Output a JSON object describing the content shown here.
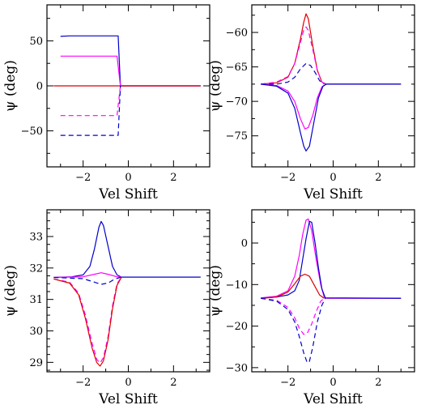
{
  "chart_data": [
    {
      "type": "line",
      "xlabel": "Vel Shift",
      "ylabel": "ψ (deg)",
      "xlim": [
        -3.6,
        3.6
      ],
      "ylim": [
        -90,
        90
      ],
      "xticks_major": [
        -2,
        0,
        2
      ],
      "xticks_minor": [
        -3,
        -1,
        1,
        3
      ],
      "yticks_major": [
        -50,
        0,
        50
      ],
      "yticks_minor": [
        -75,
        -25,
        25,
        75
      ],
      "series": [
        {
          "color": "#0000cc",
          "dash": false,
          "points": [
            [
              -3,
              55
            ],
            [
              -2.6,
              55.5
            ],
            [
              -1.5,
              55.5
            ],
            [
              -0.45,
              55.5
            ],
            [
              -0.35,
              0
            ],
            [
              3.2,
              0
            ]
          ]
        },
        {
          "color": "#ff00ff",
          "dash": false,
          "points": [
            [
              -3,
              33
            ],
            [
              -2,
              33
            ],
            [
              -0.5,
              33
            ],
            [
              -0.35,
              0
            ],
            [
              3.2,
              0
            ]
          ]
        },
        {
          "color": "#dd0000",
          "dash": false,
          "points": [
            [
              -3.3,
              0
            ],
            [
              3.2,
              0
            ]
          ]
        },
        {
          "color": "#ff00ff",
          "dash": true,
          "points": [
            [
              -3,
              -33
            ],
            [
              -0.5,
              -33
            ],
            [
              -0.35,
              0
            ]
          ]
        },
        {
          "color": "#0000cc",
          "dash": true,
          "points": [
            [
              -3,
              -55
            ],
            [
              -0.45,
              -55
            ],
            [
              -0.35,
              0
            ]
          ]
        }
      ]
    },
    {
      "type": "line",
      "xlabel": "Vel Shift",
      "ylabel": "ψ (deg)",
      "xlim": [
        -3.6,
        3.6
      ],
      "ylim": [
        -79.5,
        -56
      ],
      "xticks_major": [
        -2,
        0,
        2
      ],
      "xticks_minor": [
        -3,
        -1,
        1,
        3
      ],
      "yticks_major": [
        -75,
        -70,
        -65,
        -60
      ],
      "yticks_minor": [
        -77.5,
        -72.5,
        -67.5,
        -62.5,
        -57.5
      ],
      "series": [
        {
          "color": "#dd0000",
          "dash": false,
          "points": [
            [
              -3.2,
              -67.5
            ],
            [
              -2.5,
              -67.3
            ],
            [
              -2,
              -66.5
            ],
            [
              -1.7,
              -64.5
            ],
            [
              -1.45,
              -61
            ],
            [
              -1.3,
              -58.5
            ],
            [
              -1.2,
              -57.3
            ],
            [
              -1.1,
              -58
            ],
            [
              -0.9,
              -62
            ],
            [
              -0.7,
              -65.5
            ],
            [
              -0.5,
              -67.2
            ],
            [
              -0.3,
              -67.5
            ],
            [
              3,
              -67.5
            ]
          ]
        },
        {
          "color": "#ff00ff",
          "dash": true,
          "points": [
            [
              -3.2,
              -67.5
            ],
            [
              -2.5,
              -67.2
            ],
            [
              -2,
              -66.4
            ],
            [
              -1.7,
              -64.5
            ],
            [
              -1.45,
              -61.5
            ],
            [
              -1.3,
              -59.6
            ],
            [
              -1.2,
              -59.2
            ],
            [
              -1.1,
              -59.7
            ],
            [
              -0.9,
              -62.5
            ],
            [
              -0.7,
              -65.5
            ],
            [
              -0.5,
              -67.2
            ],
            [
              -0.3,
              -67.5
            ]
          ]
        },
        {
          "color": "#0000cc",
          "dash": true,
          "points": [
            [
              -3.2,
              -67.5
            ],
            [
              -2.5,
              -67.5
            ],
            [
              -2,
              -67.2
            ],
            [
              -1.7,
              -66.5
            ],
            [
              -1.45,
              -65.3
            ],
            [
              -1.2,
              -64.5
            ],
            [
              -1,
              -64.8
            ],
            [
              -0.8,
              -65.8
            ],
            [
              -0.6,
              -67
            ],
            [
              -0.4,
              -67.5
            ]
          ]
        },
        {
          "color": "#ff00ff",
          "dash": false,
          "points": [
            [
              -3.2,
              -67.5
            ],
            [
              -2.5,
              -67.7
            ],
            [
              -2,
              -68.5
            ],
            [
              -1.7,
              -70
            ],
            [
              -1.45,
              -72.5
            ],
            [
              -1.25,
              -74
            ],
            [
              -1.1,
              -73.8
            ],
            [
              -0.9,
              -72
            ],
            [
              -0.7,
              -69.5
            ],
            [
              -0.5,
              -67.9
            ],
            [
              -0.3,
              -67.5
            ]
          ]
        },
        {
          "color": "#0000cc",
          "dash": false,
          "points": [
            [
              -3.2,
              -67.5
            ],
            [
              -2.5,
              -67.8
            ],
            [
              -2,
              -68.8
            ],
            [
              -1.7,
              -71
            ],
            [
              -1.45,
              -74.5
            ],
            [
              -1.3,
              -76.5
            ],
            [
              -1.2,
              -77.2
            ],
            [
              -1.05,
              -76.5
            ],
            [
              -0.85,
              -73
            ],
            [
              -0.65,
              -69.5
            ],
            [
              -0.45,
              -67.8
            ],
            [
              -0.3,
              -67.5
            ],
            [
              3,
              -67.5
            ]
          ]
        }
      ]
    },
    {
      "type": "line",
      "xlabel": "Vel Shift",
      "ylabel": "ψ (deg)",
      "xlim": [
        -3.6,
        3.6
      ],
      "ylim": [
        28.7,
        33.85
      ],
      "xticks_major": [
        -2,
        0,
        2
      ],
      "xticks_minor": [
        -3,
        -1,
        1,
        3
      ],
      "yticks_major": [
        29,
        30,
        31,
        32,
        33
      ],
      "yticks_minor": [
        28.75,
        29.25,
        29.5,
        29.75,
        30.25,
        30.5,
        30.75,
        31.25,
        31.5,
        31.75,
        32.25,
        32.5,
        32.75,
        33.25,
        33.5,
        33.75
      ],
      "series": [
        {
          "color": "#0000cc",
          "dash": false,
          "points": [
            [
              -3.3,
              31.7
            ],
            [
              -2.5,
              31.72
            ],
            [
              -2,
              31.78
            ],
            [
              -1.7,
              32.05
            ],
            [
              -1.5,
              32.6
            ],
            [
              -1.3,
              33.3
            ],
            [
              -1.2,
              33.48
            ],
            [
              -1.1,
              33.35
            ],
            [
              -0.9,
              32.7
            ],
            [
              -0.7,
              32.05
            ],
            [
              -0.5,
              31.78
            ],
            [
              -0.3,
              31.71
            ],
            [
              3.2,
              31.71
            ]
          ]
        },
        {
          "color": "#ff00ff",
          "dash": false,
          "points": [
            [
              -3.3,
              31.7
            ],
            [
              -2,
              31.72
            ],
            [
              -1.5,
              31.8
            ],
            [
              -1.2,
              31.85
            ],
            [
              -0.9,
              31.8
            ],
            [
              -0.5,
              31.72
            ],
            [
              -0.3,
              31.71
            ]
          ]
        },
        {
          "color": "#0000cc",
          "dash": true,
          "points": [
            [
              -3.3,
              31.7
            ],
            [
              -2,
              31.66
            ],
            [
              -1.5,
              31.55
            ],
            [
              -1.2,
              31.48
            ],
            [
              -0.9,
              31.52
            ],
            [
              -0.6,
              31.65
            ],
            [
              -0.3,
              31.71
            ]
          ]
        },
        {
          "color": "#ff00ff",
          "dash": true,
          "points": [
            [
              -3.3,
              31.65
            ],
            [
              -2.6,
              31.55
            ],
            [
              -2.2,
              31.2
            ],
            [
              -1.9,
              30.5
            ],
            [
              -1.6,
              29.6
            ],
            [
              -1.4,
              29.1
            ],
            [
              -1.25,
              28.98
            ],
            [
              -1.1,
              29.15
            ],
            [
              -0.9,
              29.8
            ],
            [
              -0.7,
              30.8
            ],
            [
              -0.5,
              31.5
            ],
            [
              -0.3,
              31.71
            ]
          ]
        },
        {
          "color": "#dd0000",
          "dash": false,
          "points": [
            [
              -3.3,
              31.65
            ],
            [
              -2.6,
              31.52
            ],
            [
              -2.2,
              31.15
            ],
            [
              -1.9,
              30.4
            ],
            [
              -1.6,
              29.45
            ],
            [
              -1.4,
              29
            ],
            [
              -1.25,
              28.88
            ],
            [
              -1.1,
              29.05
            ],
            [
              -0.9,
              29.7
            ],
            [
              -0.7,
              30.7
            ],
            [
              -0.5,
              31.45
            ],
            [
              -0.3,
              31.71
            ]
          ]
        }
      ]
    },
    {
      "type": "line",
      "xlabel": "Vel Shift",
      "ylabel": "ψ (deg)",
      "xlim": [
        -3.6,
        3.6
      ],
      "ylim": [
        -31,
        8
      ],
      "xticks_major": [
        -2,
        0,
        2
      ],
      "xticks_minor": [
        -3,
        -1,
        1,
        3
      ],
      "yticks_major": [
        -30,
        -20,
        -10,
        0
      ],
      "yticks_minor": [
        -25,
        -15,
        -5,
        5
      ],
      "series": [
        {
          "color": "#ff00ff",
          "dash": false,
          "points": [
            [
              -3.2,
              -13.2
            ],
            [
              -2.5,
              -12.8
            ],
            [
              -2,
              -11.5
            ],
            [
              -1.7,
              -8
            ],
            [
              -1.5,
              -3
            ],
            [
              -1.35,
              2
            ],
            [
              -1.2,
              5.5
            ],
            [
              -1.1,
              5.8
            ],
            [
              -0.95,
              3
            ],
            [
              -0.75,
              -4
            ],
            [
              -0.55,
              -10
            ],
            [
              -0.4,
              -13
            ],
            [
              -0.3,
              -13.3
            ],
            [
              3,
              -13.3
            ]
          ]
        },
        {
          "color": "#0000cc",
          "dash": false,
          "points": [
            [
              -3.2,
              -13.3
            ],
            [
              -2.5,
              -13
            ],
            [
              -2,
              -12.5
            ],
            [
              -1.7,
              -11.5
            ],
            [
              -1.5,
              -9
            ],
            [
              -1.35,
              -4
            ],
            [
              -1.2,
              1
            ],
            [
              -1.05,
              5.2
            ],
            [
              -0.95,
              5
            ],
            [
              -0.8,
              0
            ],
            [
              -0.65,
              -6
            ],
            [
              -0.5,
              -11
            ],
            [
              -0.35,
              -13.2
            ],
            [
              3,
              -13.3
            ]
          ]
        },
        {
          "color": "#dd0000",
          "dash": false,
          "points": [
            [
              -3.2,
              -13.3
            ],
            [
              -2.5,
              -13
            ],
            [
              -2,
              -11.8
            ],
            [
              -1.7,
              -9.8
            ],
            [
              -1.45,
              -8
            ],
            [
              -1.25,
              -7.5
            ],
            [
              -1.05,
              -8
            ],
            [
              -0.85,
              -10
            ],
            [
              -0.6,
              -12.5
            ],
            [
              -0.4,
              -13.3
            ]
          ]
        },
        {
          "color": "#ff00ff",
          "dash": true,
          "points": [
            [
              -3.2,
              -13.3
            ],
            [
              -2.5,
              -13.8
            ],
            [
              -2,
              -15.5
            ],
            [
              -1.7,
              -18
            ],
            [
              -1.5,
              -20.5
            ],
            [
              -1.3,
              -22
            ],
            [
              -1.15,
              -21.8
            ],
            [
              -0.95,
              -19.5
            ],
            [
              -0.75,
              -16.5
            ],
            [
              -0.55,
              -14
            ],
            [
              -0.4,
              -13.3
            ]
          ]
        },
        {
          "color": "#0000cc",
          "dash": true,
          "points": [
            [
              -3.2,
              -13.3
            ],
            [
              -2.5,
              -14
            ],
            [
              -2,
              -16
            ],
            [
              -1.7,
              -19
            ],
            [
              -1.5,
              -22.5
            ],
            [
              -1.3,
              -26.5
            ],
            [
              -1.15,
              -28.8
            ],
            [
              -1.05,
              -28.5
            ],
            [
              -0.9,
              -25
            ],
            [
              -0.7,
              -19
            ],
            [
              -0.5,
              -15
            ],
            [
              -0.35,
              -13.3
            ]
          ]
        }
      ]
    }
  ]
}
